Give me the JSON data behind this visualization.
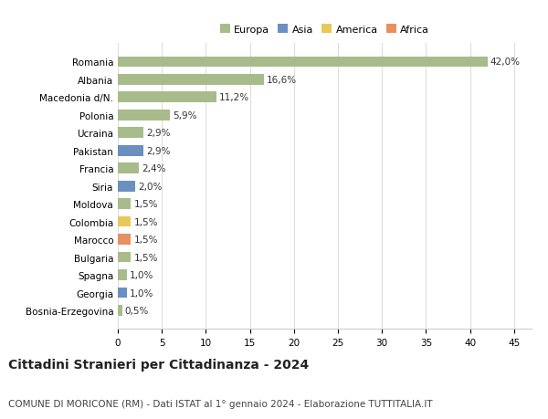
{
  "countries": [
    "Romania",
    "Albania",
    "Macedonia d/N.",
    "Polonia",
    "Ucraina",
    "Pakistan",
    "Francia",
    "Siria",
    "Moldova",
    "Colombia",
    "Marocco",
    "Bulgaria",
    "Spagna",
    "Georgia",
    "Bosnia-Erzegovina"
  ],
  "values": [
    42.0,
    16.6,
    11.2,
    5.9,
    2.9,
    2.9,
    2.4,
    2.0,
    1.5,
    1.5,
    1.5,
    1.5,
    1.0,
    1.0,
    0.5
  ],
  "labels": [
    "42,0%",
    "16,6%",
    "11,2%",
    "5,9%",
    "2,9%",
    "2,9%",
    "2,4%",
    "2,0%",
    "1,5%",
    "1,5%",
    "1,5%",
    "1,5%",
    "1,0%",
    "1,0%",
    "0,5%"
  ],
  "continents": [
    "Europa",
    "Europa",
    "Europa",
    "Europa",
    "Europa",
    "Asia",
    "Europa",
    "Asia",
    "Europa",
    "America",
    "Africa",
    "Europa",
    "Europa",
    "Asia",
    "Europa"
  ],
  "continent_colors": {
    "Europa": "#a8bb8a",
    "Asia": "#6b8fbf",
    "America": "#e8c85a",
    "Africa": "#e89060"
  },
  "legend_order": [
    "Europa",
    "Asia",
    "America",
    "Africa"
  ],
  "title": "Cittadini Stranieri per Cittadinanza - 2024",
  "subtitle": "COMUNE DI MORICONE (RM) - Dati ISTAT al 1° gennaio 2024 - Elaborazione TUTTITALIA.IT",
  "xlim": [
    0,
    47
  ],
  "xticks": [
    0,
    5,
    10,
    15,
    20,
    25,
    30,
    35,
    40,
    45
  ],
  "background_color": "#ffffff",
  "bar_height": 0.6,
  "grid_color": "#dddddd",
  "label_fontsize": 7.5,
  "tick_fontsize": 7.5,
  "title_fontsize": 10,
  "subtitle_fontsize": 7.5
}
